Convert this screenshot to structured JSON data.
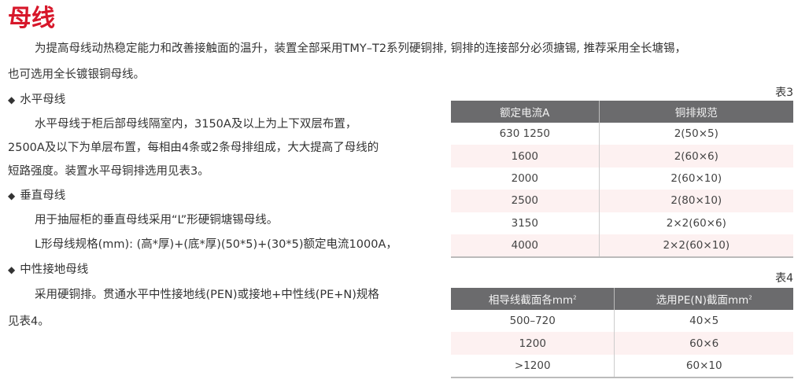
{
  "title": "母线",
  "intro": [
    "为提高母线动热稳定能力和改善接触面的温升，装置全部采用TMY–T2系列硬铜排, 铜排的连接部分必须搪锡, 推荐采用全长塘锡，",
    "也可选用全长镀银铜母线。"
  ],
  "sections": [
    {
      "heading": "水平母线",
      "lines": [
        "水平母线于柜后部母线隔室内，3150A及以上为上下双层布置，",
        "2500A及以下为单层布置，每相由4条或2条母排组成，大大提高了母线的",
        "短路强度。装置水平母铜排选用见表3。"
      ]
    },
    {
      "heading": "垂直母线",
      "lines": [
        "用于抽屉柜的垂直母线采用“L”形硬铜塘锡母线。",
        "L形母线规格(mm): (高*厚)+(底*厚)(50*5)+(30*5)额定电流1000A，"
      ]
    },
    {
      "heading": "中性接地母线",
      "lines": [
        "采用硬铜排。贯通水平中性接地线(PEN)或接地+中性线(PE+N)规格",
        "见表4。"
      ]
    }
  ],
  "bullet_icon": "diamond",
  "table3": {
    "label": "表3",
    "headers": [
      "额定电流A",
      "铜排规范"
    ],
    "rows": [
      [
        "630 1250",
        "2(50×5)"
      ],
      [
        "1600",
        "2(60×6)"
      ],
      [
        "2000",
        "2(60×10)"
      ],
      [
        "2500",
        "2(80×10)"
      ],
      [
        "3150",
        "2×2(60×6)"
      ],
      [
        "4000",
        "2×2(60×10)"
      ]
    ]
  },
  "table4": {
    "label": "表4",
    "headers": [
      "相导线截面各mm",
      "选用PE(N)截面mm"
    ],
    "header_sup": "2",
    "rows": [
      [
        "500–720",
        "40×5"
      ],
      [
        "1200",
        "60×6"
      ],
      [
        ">1200",
        "60×10"
      ]
    ]
  },
  "colors": {
    "title": "#d7172a",
    "table_header": "#6b6b6d",
    "row_alt": "#fdf1f1"
  }
}
